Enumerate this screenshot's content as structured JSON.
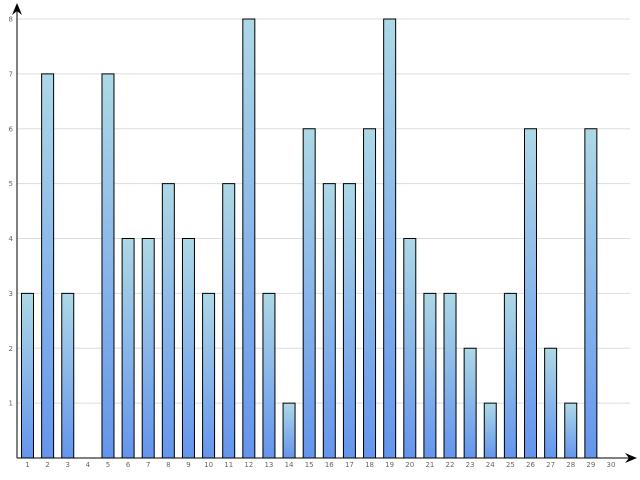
{
  "chart_data": {
    "type": "bar",
    "categories": [
      "1",
      "2",
      "3",
      "4",
      "5",
      "6",
      "7",
      "8",
      "9",
      "10",
      "11",
      "12",
      "13",
      "14",
      "15",
      "16",
      "17",
      "18",
      "19",
      "20",
      "21",
      "22",
      "23",
      "24",
      "25",
      "26",
      "27",
      "28",
      "29",
      "30"
    ],
    "values": [
      3,
      7,
      3,
      0,
      7,
      4,
      4,
      5,
      4,
      3,
      5,
      8,
      3,
      1,
      6,
      5,
      5,
      6,
      8,
      4,
      3,
      3,
      2,
      1,
      3,
      6,
      2,
      1,
      6,
      0
    ],
    "yticks": [
      1,
      2,
      3,
      4,
      5,
      6,
      7,
      8
    ],
    "ylim": [
      0,
      8
    ],
    "grid": true,
    "title": "",
    "xlabel": "",
    "ylabel": "",
    "colors": {
      "bar_top": "#add8e6",
      "bar_bottom": "#6495ed",
      "bar_stroke": "#000000",
      "grid": "#dddddd",
      "axis": "#000000"
    }
  }
}
